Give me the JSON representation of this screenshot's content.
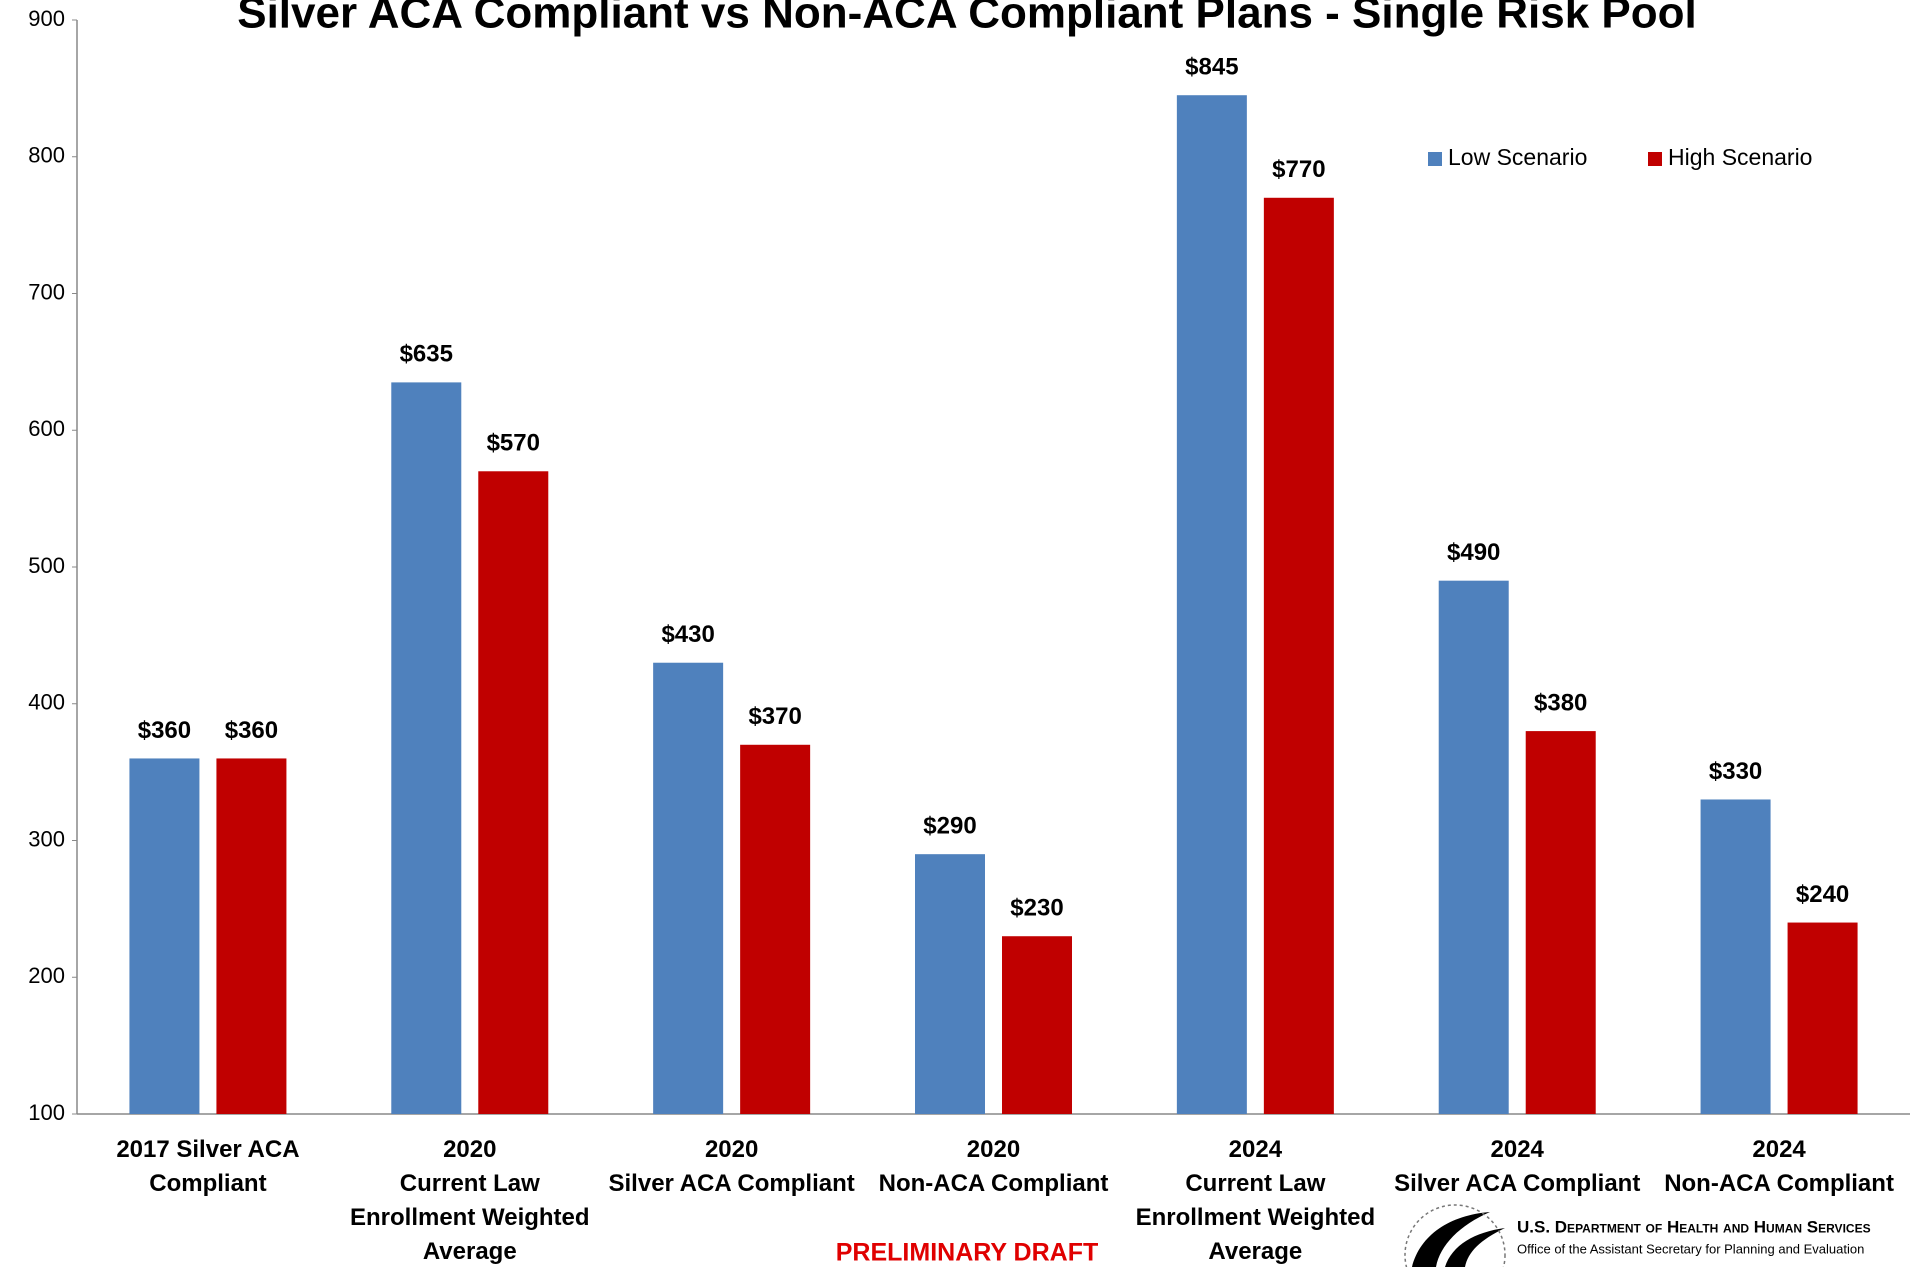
{
  "chart_data": {
    "type": "bar",
    "title": "Silver ACA Compliant vs Non-ACA Compliant Plans - Single Risk Pool",
    "categories": [
      "2017 Silver ACA\nCompliant",
      "2020\nCurrent Law\nEnrollment Weighted\nAverage",
      "2020\nSilver ACA Compliant",
      "2020\nNon-ACA Compliant",
      "2024\nCurrent Law\nEnrollment Weighted\nAverage",
      "2024\nSilver ACA Compliant",
      "2024\nNon-ACA Compliant"
    ],
    "series": [
      {
        "name": "Low Scenario",
        "color": "#4f81bd",
        "values": [
          360,
          635,
          430,
          290,
          845,
          490,
          330
        ],
        "value_labels": [
          "$360",
          "$635",
          "$430",
          "$290",
          "$845",
          "$490",
          "$330"
        ]
      },
      {
        "name": "High Scenario",
        "color": "#c00000",
        "values": [
          360,
          570,
          370,
          230,
          770,
          380,
          240
        ],
        "value_labels": [
          "$360",
          "$570",
          "$370",
          "$230",
          "$770",
          "$380",
          "$240"
        ]
      }
    ],
    "ylim": [
      100,
      900
    ],
    "yticks": [
      100,
      200,
      300,
      400,
      500,
      600,
      700,
      800,
      900
    ],
    "legend": "top-right",
    "annotation": "PRELIMINARY DRAFT",
    "logo": {
      "line1": "U.S. Department of Health and Human Services",
      "line2": "Office of the Assistant Secretary for Planning and Evaluation"
    }
  }
}
